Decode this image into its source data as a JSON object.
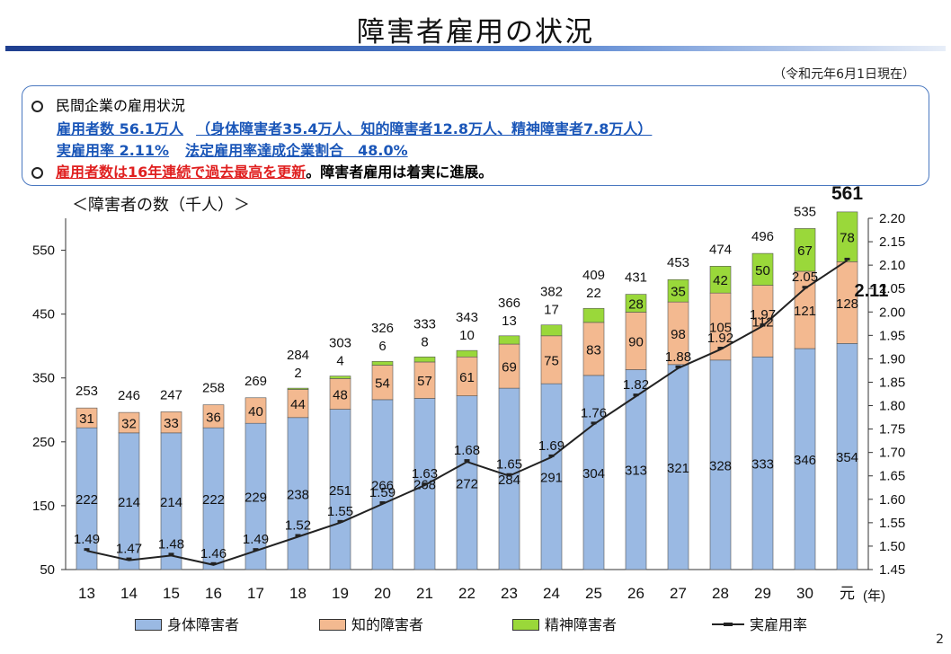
{
  "page": {
    "title": "障害者雇用の状況",
    "date_note": "（令和元年6月1日現在）",
    "page_number": "2"
  },
  "summary": {
    "line1": "民間企業の雇用状況",
    "line2_a": "雇用者数 56.1万人",
    "line2_b": "（身体障害者35.4万人、知的障害者12.8万人、精神障害者7.8万人）",
    "line3_a": "実雇用率 2.11%",
    "line3_b": "法定雇用率達成企業割合　48.0%",
    "line4_a": "雇用者数は16年連続で過去最高を更新",
    "line4_b": "。障害者雇用は着実に進展。"
  },
  "chart_data": {
    "type": "bar",
    "stacked": true,
    "unit_label": "＜障害者の数（千人）＞",
    "x_unit": "(年)",
    "categories": [
      "13",
      "14",
      "15",
      "16",
      "17",
      "18",
      "19",
      "20",
      "21",
      "22",
      "23",
      "24",
      "25",
      "26",
      "27",
      "28",
      "29",
      "30",
      "元"
    ],
    "series": [
      {
        "name": "身体障害者",
        "color": "#9ab9e3",
        "values": [
          222,
          214,
          214,
          222,
          229,
          238,
          251,
          266,
          268,
          272,
          284,
          291,
          304,
          313,
          321,
          328,
          333,
          346,
          354
        ]
      },
      {
        "name": "知的障害者",
        "color": "#f3b990",
        "values": [
          31,
          32,
          33,
          36,
          40,
          44,
          48,
          54,
          57,
          61,
          69,
          75,
          83,
          90,
          98,
          105,
          112,
          121,
          128
        ]
      },
      {
        "name": "精神障害者",
        "color": "#9ad83a",
        "values": [
          0,
          0,
          0,
          0,
          0,
          2,
          4,
          6,
          8,
          10,
          13,
          17,
          22,
          28,
          35,
          42,
          50,
          67,
          78
        ]
      }
    ],
    "totals": [
      253,
      246,
      247,
      258,
      269,
      284,
      303,
      326,
      333,
      343,
      366,
      382,
      409,
      431,
      453,
      474,
      496,
      535,
      561
    ],
    "line_series": {
      "name": "実雇用率",
      "values": [
        1.49,
        1.47,
        1.48,
        1.46,
        1.49,
        1.52,
        1.55,
        1.59,
        1.63,
        1.68,
        1.65,
        1.69,
        1.76,
        1.82,
        1.88,
        1.92,
        1.97,
        2.05,
        2.11
      ]
    },
    "y_left": {
      "ticks": [
        50,
        150,
        250,
        350,
        450,
        550
      ],
      "min": 50,
      "max": 600
    },
    "y_right": {
      "ticks": [
        "1.45",
        "1.50",
        "1.55",
        "1.60",
        "1.65",
        "1.70",
        "1.75",
        "1.80",
        "1.85",
        "1.90",
        "1.95",
        "2.00",
        "2.05",
        "2.10",
        "2.15",
        "2.20"
      ],
      "min": 1.45,
      "max": 2.2
    }
  }
}
